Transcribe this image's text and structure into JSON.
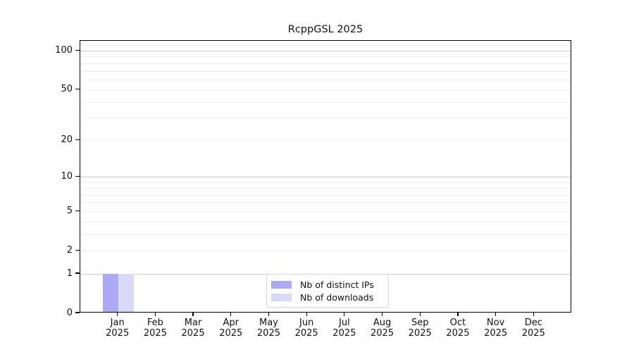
{
  "title": "RcppGSL 2025",
  "chart_data": {
    "type": "bar",
    "title": "RcppGSL 2025",
    "categories": [
      "Jan",
      "Feb",
      "Mar",
      "Apr",
      "May",
      "Jun",
      "Jul",
      "Aug",
      "Sep",
      "Oct",
      "Nov",
      "Dec"
    ],
    "x_axis": {
      "year": "2025"
    },
    "series": [
      {
        "name": "Nb of distinct IPs",
        "color": "#aaaaf6",
        "values": [
          1,
          0,
          0,
          0,
          0,
          0,
          0,
          0,
          0,
          0,
          0,
          0
        ]
      },
      {
        "name": "Nb of downloads",
        "color": "#dadaf8",
        "values": [
          1,
          0,
          0,
          0,
          0,
          0,
          0,
          0,
          0,
          0,
          0,
          0
        ]
      }
    ],
    "y_axis": {
      "scale": "log1p",
      "tick_values": [
        0,
        1,
        2,
        5,
        10,
        20,
        50,
        100
      ],
      "tick_labels": [
        "0",
        "1",
        "2",
        "5",
        "10",
        "20",
        "50",
        "100"
      ],
      "range": [
        0,
        120
      ]
    },
    "grid": {
      "major_color": "#c9c9c9",
      "minor_color": "#efefef"
    },
    "legend": {
      "position": "bottom-center",
      "items": [
        "Nb of distinct IPs",
        "Nb of downloads"
      ]
    }
  }
}
